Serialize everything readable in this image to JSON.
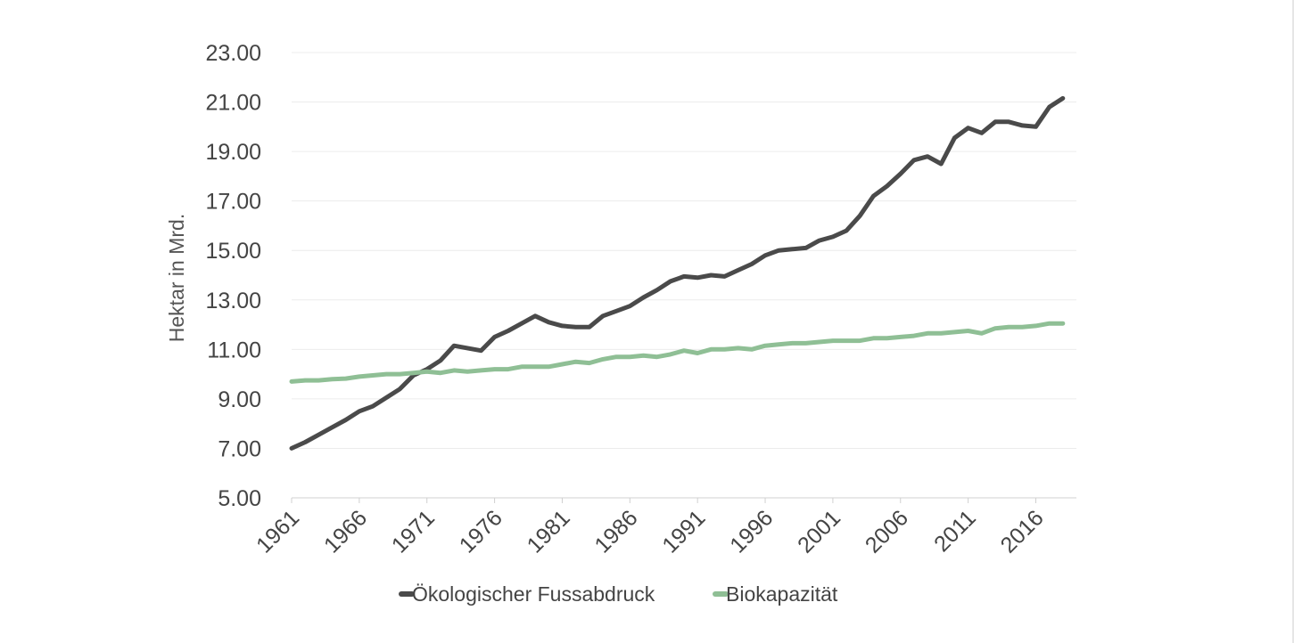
{
  "chart_data": {
    "type": "line",
    "title": "",
    "xlabel": "",
    "ylabel": "Hektar in Mrd.",
    "ylim": [
      5,
      23
    ],
    "yticks": [
      "5.00",
      "7.00",
      "9.00",
      "11.00",
      "13.00",
      "15.00",
      "17.00",
      "19.00",
      "21.00",
      "23.00"
    ],
    "xtick_labels": [
      "1961",
      "1966",
      "1971",
      "1976",
      "1981",
      "1986",
      "1991",
      "1996",
      "2001",
      "2006",
      "2011",
      "2016"
    ],
    "grid": true,
    "legend_position": "bottom",
    "x": [
      1961,
      1962,
      1963,
      1964,
      1965,
      1966,
      1967,
      1968,
      1969,
      1970,
      1971,
      1972,
      1973,
      1974,
      1975,
      1976,
      1977,
      1978,
      1979,
      1980,
      1981,
      1982,
      1983,
      1984,
      1985,
      1986,
      1987,
      1988,
      1989,
      1990,
      1991,
      1992,
      1993,
      1994,
      1995,
      1996,
      1997,
      1998,
      1999,
      2000,
      2001,
      2002,
      2003,
      2004,
      2005,
      2006,
      2007,
      2008,
      2009,
      2010,
      2011,
      2012,
      2013,
      2014,
      2015,
      2016,
      2017,
      2018
    ],
    "series": [
      {
        "name": "Ökologischer Fussabdruck",
        "color": "#4a4a4a",
        "values": [
          7.0,
          7.25,
          7.55,
          7.85,
          8.15,
          8.5,
          8.7,
          9.05,
          9.4,
          9.95,
          10.2,
          10.55,
          11.15,
          11.05,
          10.95,
          11.5,
          11.75,
          12.05,
          12.35,
          12.1,
          11.95,
          11.9,
          11.9,
          12.35,
          12.55,
          12.75,
          13.1,
          13.4,
          13.75,
          13.95,
          13.9,
          14.0,
          13.95,
          14.2,
          14.45,
          14.8,
          15.0,
          15.05,
          15.1,
          15.4,
          15.55,
          15.8,
          16.4,
          17.2,
          17.6,
          18.1,
          18.65,
          18.8,
          18.5,
          19.55,
          19.95,
          19.75,
          20.2,
          20.2,
          20.05,
          20.0,
          20.8,
          21.15
        ]
      },
      {
        "name": "Biokapazität",
        "color": "#8fbf95",
        "values": [
          9.7,
          9.75,
          9.75,
          9.8,
          9.82,
          9.9,
          9.95,
          10.0,
          10.0,
          10.05,
          10.1,
          10.05,
          10.15,
          10.1,
          10.15,
          10.2,
          10.2,
          10.3,
          10.3,
          10.3,
          10.4,
          10.5,
          10.45,
          10.6,
          10.7,
          10.7,
          10.75,
          10.7,
          10.8,
          10.95,
          10.85,
          11.0,
          11.0,
          11.05,
          11.0,
          11.15,
          11.2,
          11.25,
          11.25,
          11.3,
          11.35,
          11.35,
          11.35,
          11.45,
          11.45,
          11.5,
          11.55,
          11.65,
          11.65,
          11.7,
          11.75,
          11.65,
          11.85,
          11.9,
          11.9,
          11.95,
          12.05,
          12.05
        ]
      }
    ]
  }
}
